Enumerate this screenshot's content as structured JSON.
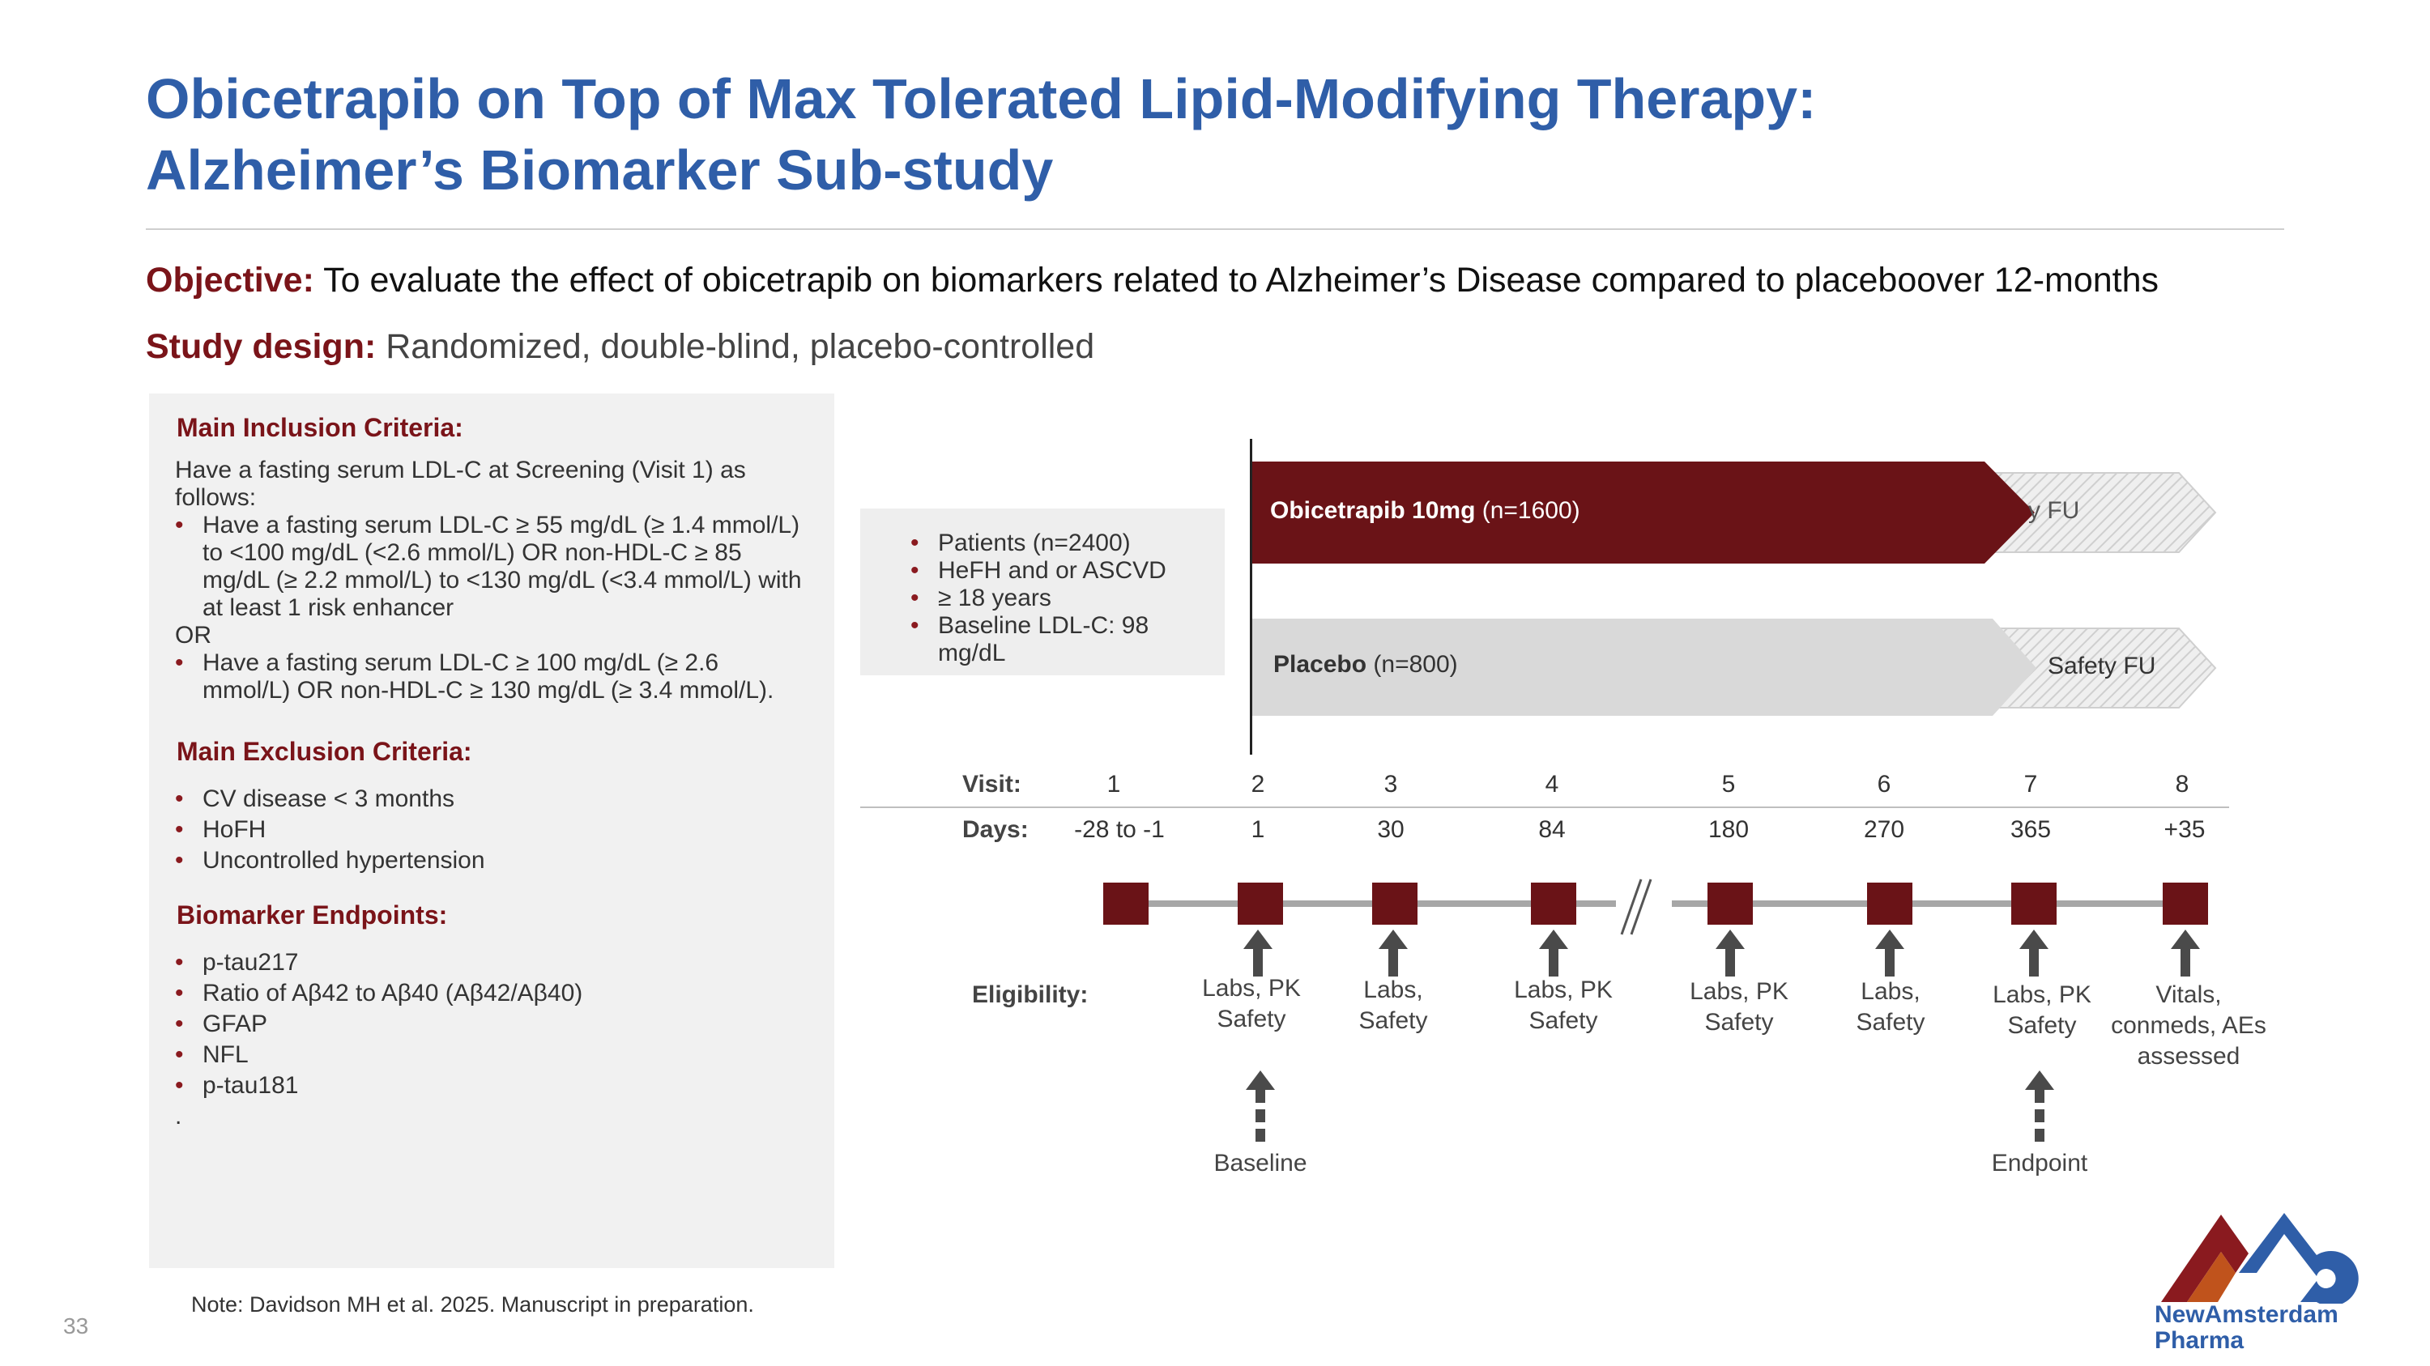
{
  "title": {
    "line1": "Obicetrapib on Top of Max Tolerated Lipid-Modifying Therapy:",
    "line2": "Alzheimer’s Biomarker Sub-study"
  },
  "objective": {
    "label": "Objective:",
    "text": " To evaluate the effect of obicetrapib on biomarkers related to Alzheimer’s Disease compared to placeboover 12-months"
  },
  "study_design": {
    "label": "Study design:",
    "text": " Randomized, double-blind, placebo-controlled"
  },
  "inclusion": {
    "heading": "Main Inclusion Criteria:",
    "intro": "Have a fasting serum LDL-C at Screening (Visit 1) as follows:",
    "item1": "Have a fasting serum LDL-C ≥ 55 mg/dL (≥ 1.4 mmol/L) to <100 mg/dL (<2.6 mmol/L) OR non-HDL-C ≥ 85 mg/dL (≥ 2.2 mmol/L) to <130 mg/dL (<3.4 mmol/L) with at least 1 risk enhancer",
    "or": "OR",
    "item2": "Have a fasting serum LDL-C ≥ 100 mg/dL (≥ 2.6 mmol/L) OR non-HDL-C ≥ 130 mg/dL (≥ 3.4 mmol/L)."
  },
  "exclusion": {
    "heading": "Main Exclusion Criteria:",
    "items": [
      "CV disease < 3 months",
      "HoFH",
      "Uncontrolled hypertension"
    ]
  },
  "endpoints": {
    "heading": "Biomarker Endpoints:",
    "items": [
      "p-tau217",
      "Ratio of Aβ42 to Aβ40 (Aβ42/Aβ40)",
      "GFAP",
      "NFL",
      "p-tau181"
    ],
    "trailing": "."
  },
  "patients": {
    "items": [
      "Patients (n=2400)",
      "HeFH and or ASCVD",
      "≥ 18 years",
      "Baseline LDL-C:  98 mg/dL"
    ]
  },
  "arms": {
    "obicetrapib_label": "Obicetrapib 10mg",
    "obicetrapib_n": " (n=1600)",
    "obicetrapib_fu": "y FU",
    "placebo_label": "Placebo",
    "placebo_n": " (n=800)",
    "placebo_fu": "Safety FU"
  },
  "schedule": {
    "visit_label": "Visit:",
    "days_label": "Days:",
    "eligibility_label": "Eligibility:",
    "visits": [
      "1",
      "2",
      "3",
      "4",
      "5",
      "6",
      "7",
      "8"
    ],
    "days": [
      "-28 to -1",
      "1",
      "30",
      "84",
      "180",
      "270",
      "365",
      "+35"
    ],
    "labs": [
      {
        "l1": "Labs, PK",
        "l2": "Safety",
        "l3": ""
      },
      {
        "l1": "Labs,",
        "l2": "Safety",
        "l3": ""
      },
      {
        "l1": "Labs, PK",
        "l2": "Safety",
        "l3": ""
      },
      {
        "l1": "Labs, PK",
        "l2": "Safety",
        "l3": ""
      },
      {
        "l1": "Labs,",
        "l2": "Safety",
        "l3": ""
      },
      {
        "l1": "Labs, PK",
        "l2": "Safety",
        "l3": ""
      },
      {
        "l1": "Vitals,",
        "l2": "conmeds, AEs",
        "l3": "assessed"
      }
    ],
    "baseline": "Baseline",
    "endpoint": "Endpoint"
  },
  "note": "Note: Davidson MH et al. 2025. Manuscript in preparation.",
  "page_number": "33",
  "logo": {
    "line1": "NewAmsterdam",
    "line2": "Pharma"
  },
  "colors": {
    "title": "#2f5ea8",
    "accent": "#7a1419",
    "arm": "#6a1317"
  }
}
